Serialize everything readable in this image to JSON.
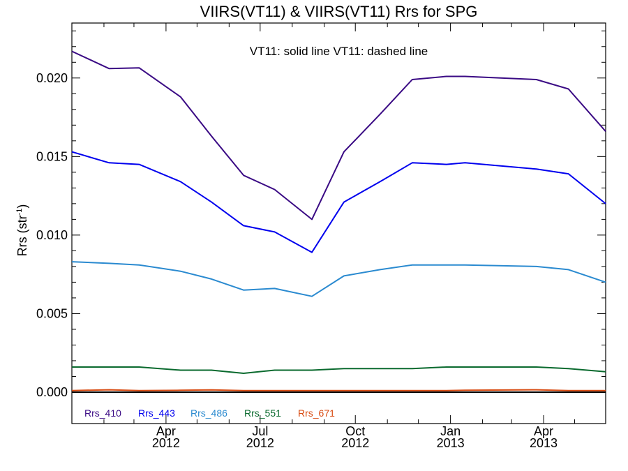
{
  "chart_data": {
    "type": "line",
    "title": "VIIRS(VT11) & VIIRS(VT11)  Rrs for SPG",
    "annotation": "VT11: solid line   VT11: dashed line",
    "xlabel": "",
    "ylabel": "Rrs (str",
    "ylabel_superscript": "-1",
    "ylabel_close": ")",
    "xlim": [
      "2012-01-01",
      "2013-05-31"
    ],
    "ylim": [
      -0.002,
      0.0235
    ],
    "x": [
      "2012-01-01",
      "2012-02-06",
      "2012-03-06",
      "2012-04-15",
      "2012-05-15",
      "2012-06-15",
      "2012-07-15",
      "2012-08-20",
      "2012-09-20",
      "2012-10-25",
      "2012-11-25",
      "2012-12-28",
      "2013-01-15",
      "2013-03-25",
      "2013-04-25",
      "2013-05-31"
    ],
    "series": [
      {
        "name": "Rrs_410",
        "color": "#3a0a84",
        "values": [
          0.0217,
          0.0206,
          0.02065,
          0.0188,
          0.0163,
          0.0138,
          0.0129,
          0.011,
          0.0153,
          0.0177,
          0.0199,
          0.0201,
          0.0201,
          0.0199,
          0.0193,
          0.0166
        ]
      },
      {
        "name": "Rrs_443",
        "color": "#0000ee",
        "values": [
          0.0153,
          0.0146,
          0.0145,
          0.0134,
          0.0121,
          0.0106,
          0.0102,
          0.0089,
          0.0121,
          0.0134,
          0.0146,
          0.0145,
          0.0146,
          0.0142,
          0.0139,
          0.012
        ]
      },
      {
        "name": "Rrs_486",
        "color": "#2a8ad0",
        "values": [
          0.0083,
          0.0082,
          0.0081,
          0.0077,
          0.0072,
          0.0065,
          0.0066,
          0.0061,
          0.0074,
          0.0078,
          0.0081,
          0.0081,
          0.0081,
          0.008,
          0.0078,
          0.007
        ]
      },
      {
        "name": "Rrs_551",
        "color": "#0a6a2e",
        "values": [
          0.0016,
          0.0016,
          0.0016,
          0.0014,
          0.0014,
          0.0012,
          0.0014,
          0.0014,
          0.0015,
          0.0015,
          0.0015,
          0.0016,
          0.0016,
          0.0016,
          0.0015,
          0.0013
        ]
      },
      {
        "name": "Rrs_671",
        "color": "#d84a10",
        "values": [
          0.0001,
          0.00015,
          0.0001,
          0.00012,
          0.00014,
          0.0001,
          0.0001,
          0.0001,
          0.0001,
          0.0001,
          0.0001,
          0.0001,
          0.00012,
          0.00015,
          0.0001,
          0.0001
        ]
      }
    ],
    "zero_line": 0.0,
    "yticks": [
      0.0,
      0.005,
      0.01,
      0.015,
      0.02
    ],
    "ytick_labels": [
      "0.000",
      "0.005",
      "0.010",
      "0.015",
      "0.020"
    ],
    "xticks": [
      {
        "date": "2012-04-01",
        "month": "Apr",
        "year": "2012"
      },
      {
        "date": "2012-07-01",
        "month": "Jul",
        "year": "2012"
      },
      {
        "date": "2012-10-01",
        "month": "Oct",
        "year": "2012"
      },
      {
        "date": "2013-01-01",
        "month": "Jan",
        "year": "2013"
      },
      {
        "date": "2013-04-01",
        "month": "Apr",
        "year": "2013"
      }
    ],
    "legend_placement": "bottom-left",
    "grid": false
  }
}
